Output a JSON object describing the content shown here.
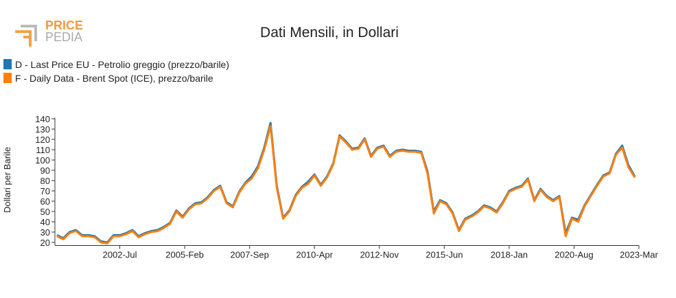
{
  "logo": {
    "line1": "PRICE",
    "line2": "PEDIA"
  },
  "chart_data": {
    "type": "line",
    "title": "Dati Mensili, in Dollari",
    "y_label": "Dollari per Barile",
    "x": [
      "2000-Jan",
      "2000-Apr",
      "2000-Jul",
      "2000-Oct",
      "2001-Jan",
      "2001-Apr",
      "2001-Jul",
      "2001-Oct",
      "2002-Jan",
      "2002-Apr",
      "2002-Jul",
      "2002-Oct",
      "2003-Jan",
      "2003-Apr",
      "2003-Jul",
      "2003-Oct",
      "2004-Jan",
      "2004-Apr",
      "2004-Jul",
      "2004-Oct",
      "2005-Jan",
      "2005-Apr",
      "2005-Jul",
      "2005-Oct",
      "2006-Jan",
      "2006-Apr",
      "2006-Jul",
      "2006-Oct",
      "2007-Jan",
      "2007-Apr",
      "2007-Jul",
      "2007-Oct",
      "2008-Jan",
      "2008-Apr",
      "2008-Jul",
      "2008-Oct",
      "2009-Jan",
      "2009-Apr",
      "2009-Jul",
      "2009-Oct",
      "2010-Jan",
      "2010-Apr",
      "2010-Jul",
      "2010-Oct",
      "2011-Jan",
      "2011-Apr",
      "2011-Jul",
      "2011-Oct",
      "2012-Jan",
      "2012-Apr",
      "2012-Jul",
      "2012-Oct",
      "2013-Jan",
      "2013-Apr",
      "2013-Jul",
      "2013-Oct",
      "2014-Jan",
      "2014-Apr",
      "2014-Jul",
      "2014-Oct",
      "2015-Jan",
      "2015-Apr",
      "2015-Jul",
      "2015-Oct",
      "2016-Jan",
      "2016-Apr",
      "2016-Jul",
      "2016-Oct",
      "2017-Jan",
      "2017-Apr",
      "2017-Jul",
      "2017-Oct",
      "2018-Jan",
      "2018-Apr",
      "2018-Jul",
      "2018-Oct",
      "2019-Jan",
      "2019-Apr",
      "2019-Jul",
      "2019-Oct",
      "2020-Jan",
      "2020-Apr",
      "2020-Jul",
      "2020-Oct",
      "2021-Jan",
      "2021-Apr",
      "2021-Jul",
      "2021-Oct",
      "2022-Jan",
      "2022-Apr",
      "2022-Jul",
      "2022-Oct",
      "2023-Jan"
    ],
    "series": [
      {
        "name": "D - Last Price EU - Petrolio greggio (prezzo/barile)",
        "color": "#1f77b4",
        "values": [
          27,
          24,
          30,
          32,
          27,
          27,
          26,
          21,
          20,
          27,
          27,
          29,
          32,
          26,
          29,
          31,
          32,
          35,
          39,
          51,
          45,
          53,
          58,
          59,
          64,
          71,
          75,
          59,
          55,
          69,
          78,
          84,
          94,
          112,
          136,
          75,
          44,
          51,
          66,
          74,
          79,
          86,
          76,
          84,
          97,
          124,
          118,
          111,
          112,
          121,
          104,
          112,
          114,
          104,
          109,
          110,
          109,
          109,
          108,
          89,
          50,
          61,
          58,
          49,
          32,
          43,
          46,
          50,
          56,
          54,
          50,
          59,
          70,
          73,
          75,
          82,
          61,
          72,
          65,
          61,
          65,
          29,
          44,
          42,
          56,
          66,
          76,
          85,
          88,
          106,
          114,
          95,
          84
        ]
      },
      {
        "name": "F - Daily Data - Brent Spot (ICE), prezzo/barile",
        "color": "#ff7f0e",
        "values": [
          26,
          23,
          29,
          31,
          26,
          26,
          25,
          20,
          19,
          26,
          26,
          28,
          31,
          25,
          28,
          30,
          31,
          34,
          38,
          50,
          44,
          52,
          57,
          58,
          63,
          70,
          74,
          58,
          54,
          68,
          77,
          82,
          92,
          110,
          133,
          73,
          43,
          50,
          65,
          73,
          77,
          85,
          75,
          83,
          96,
          123,
          117,
          110,
          111,
          120,
          103,
          111,
          113,
          103,
          108,
          109,
          108,
          108,
          107,
          87,
          48,
          60,
          57,
          48,
          31,
          42,
          45,
          49,
          55,
          53,
          49,
          58,
          69,
          72,
          74,
          81,
          60,
          71,
          64,
          60,
          64,
          26,
          43,
          40,
          55,
          65,
          75,
          84,
          87,
          105,
          112,
          93,
          83
        ]
      }
    ],
    "xlim": [
      "1999-Dec",
      "2023-Mar"
    ],
    "xticks": [
      "2002-Jul",
      "2005-Feb",
      "2007-Sep",
      "2010-Apr",
      "2012-Nov",
      "2015-Jun",
      "2018-Jan",
      "2020-Aug",
      "2023-Mar"
    ],
    "ylim": [
      17,
      141
    ],
    "yticks": [
      20,
      30,
      40,
      50,
      60,
      70,
      80,
      90,
      100,
      110,
      120,
      130,
      140
    ]
  }
}
